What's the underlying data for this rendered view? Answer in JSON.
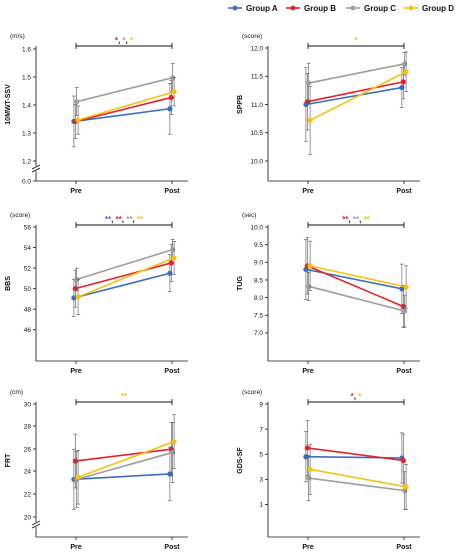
{
  "legend": [
    {
      "name": "Group A",
      "color": "#3a6fbf"
    },
    {
      "name": "Group B",
      "color": "#e8202a"
    },
    {
      "name": "Group C",
      "color": "#9e9e9e"
    },
    {
      "name": "Group D",
      "color": "#f7c20f"
    }
  ],
  "chart_data": [
    {
      "type": "line",
      "ylabel": "10MWT-SSV",
      "unit": "(m/s)",
      "categories": [
        "Pre",
        "Post"
      ],
      "ylim": [
        1.2,
        1.6
      ],
      "yticks": [
        "0.0",
        "1.2",
        "1.3",
        "1.4",
        "1.5",
        "1.6"
      ],
      "series": [
        {
          "name": "Group A",
          "values": [
            1.34,
            1.385
          ],
          "err": [
            0.09,
            0.09
          ]
        },
        {
          "name": "Group B",
          "values": [
            1.34,
            1.425
          ],
          "err": [
            0.06,
            0.06
          ]
        },
        {
          "name": "Group C",
          "values": [
            1.41,
            1.495
          ],
          "err": [
            0.05,
            0.05
          ]
        },
        {
          "name": "Group D",
          "values": [
            1.345,
            1.445
          ],
          "err": [
            0.05,
            0.05
          ]
        }
      ],
      "significance": [
        {
          "text": "*",
          "color": "#e8202a"
        },
        {
          "text": ", ",
          "color": "#111111"
        },
        {
          "text": "*",
          "color": "#9e9e9e"
        },
        {
          "text": ", ",
          "color": "#111111"
        },
        {
          "text": "*",
          "color": "#f7c20f"
        }
      ],
      "axis_break": true
    },
    {
      "type": "line",
      "ylabel": "SPPB",
      "unit": "(score)",
      "categories": [
        "Pre",
        "Post"
      ],
      "ylim": [
        10.0,
        12.0
      ],
      "yticks": [
        "10.0",
        "10.5",
        "11.0",
        "11.5",
        "12.0"
      ],
      "series": [
        {
          "name": "Group A",
          "values": [
            11.0,
            11.3
          ],
          "err": [
            0.65,
            0.35
          ]
        },
        {
          "name": "Group B",
          "values": [
            11.05,
            11.4
          ],
          "err": [
            0.5,
            0.3
          ]
        },
        {
          "name": "Group C",
          "values": [
            11.38,
            11.72
          ],
          "err": [
            0.35,
            0.2
          ]
        },
        {
          "name": "Group D",
          "values": [
            10.72,
            11.58
          ],
          "err": [
            0.6,
            0.35
          ]
        }
      ],
      "significance": [
        {
          "text": "*",
          "color": "#f7c20f"
        }
      ],
      "axis_break": false
    },
    {
      "type": "line",
      "ylabel": "BBS",
      "unit": "(score)",
      "categories": [
        "Pre",
        "Post"
      ],
      "ylim": [
        45,
        56
      ],
      "yticks": [
        "46",
        "48",
        "50",
        "52",
        "54",
        "56"
      ],
      "series": [
        {
          "name": "Group A",
          "values": [
            49.1,
            51.5
          ],
          "err": [
            1.8,
            1.8
          ]
        },
        {
          "name": "Group B",
          "values": [
            50.0,
            52.5
          ],
          "err": [
            1.8,
            1.8
          ]
        },
        {
          "name": "Group C",
          "values": [
            50.9,
            53.8
          ],
          "err": [
            1.1,
            1.0
          ]
        },
        {
          "name": "Group D",
          "values": [
            49.2,
            53.0
          ],
          "err": [
            1.7,
            1.6
          ]
        }
      ],
      "significance": [
        {
          "text": "**",
          "color": "#3a6fbf"
        },
        {
          "text": ", ",
          "color": "#111111"
        },
        {
          "text": "**",
          "color": "#e8202a"
        },
        {
          "text": ", ",
          "color": "#111111"
        },
        {
          "text": "**",
          "color": "#9e9e9e"
        },
        {
          "text": ", ",
          "color": "#111111"
        },
        {
          "text": "**",
          "color": "#f7c20f"
        }
      ],
      "axis_break": false
    },
    {
      "type": "line",
      "ylabel": "TUG",
      "unit": "(sec)",
      "categories": [
        "Pre",
        "Post"
      ],
      "ylim": [
        6.8,
        10.0
      ],
      "yticks": [
        "7.0",
        "7.5",
        "8.0",
        "8.5",
        "9.0",
        "9.5",
        "10.0"
      ],
      "series": [
        {
          "name": "Group A",
          "values": [
            8.8,
            8.25
          ],
          "err": [
            0.85,
            0.7
          ]
        },
        {
          "name": "Group B",
          "values": [
            8.9,
            7.75
          ],
          "err": [
            0.8,
            0.6
          ]
        },
        {
          "name": "Group C",
          "values": [
            8.32,
            7.62
          ],
          "err": [
            0.4,
            0.45
          ]
        },
        {
          "name": "Group D",
          "values": [
            8.9,
            8.3
          ],
          "err": [
            0.7,
            0.6
          ]
        }
      ],
      "significance": [
        {
          "text": "**",
          "color": "#e8202a"
        },
        {
          "text": ", ",
          "color": "#111111"
        },
        {
          "text": "**",
          "color": "#9e9e9e"
        },
        {
          "text": ", ",
          "color": "#111111"
        },
        {
          "text": "**",
          "color": "#f7c20f"
        }
      ],
      "axis_break": false
    },
    {
      "type": "line",
      "ylabel": "FRT",
      "unit": "(cm)",
      "categories": [
        "Pre",
        "Post"
      ],
      "ylim": [
        19.5,
        30.0
      ],
      "yticks": [
        "20",
        "22",
        "24",
        "26",
        "28",
        "30"
      ],
      "series": [
        {
          "name": "Group A",
          "values": [
            23.0,
            23.5
          ],
          "err": [
            2.8,
            2.5
          ]
        },
        {
          "name": "Group B",
          "values": [
            24.7,
            25.8
          ],
          "err": [
            2.5,
            2.5
          ]
        },
        {
          "name": "Group C",
          "values": [
            23.0,
            25.5
          ],
          "err": [
            2.6,
            2.8
          ]
        },
        {
          "name": "Group D",
          "values": [
            23.2,
            26.5
          ],
          "err": [
            2.5,
            2.5
          ]
        }
      ],
      "significance": [
        {
          "text": "**",
          "color": "#f7c20f"
        }
      ],
      "axis_break": true
    },
    {
      "type": "line",
      "ylabel": "GDS-SF",
      "unit": "(score)",
      "categories": [
        "Pre",
        "Post"
      ],
      "ylim": [
        0,
        9
      ],
      "yticks": [
        "1",
        "3",
        "5",
        "7",
        "9"
      ],
      "series": [
        {
          "name": "Group A",
          "values": [
            4.8,
            4.7
          ],
          "err": [
            2.0,
            2.0
          ]
        },
        {
          "name": "Group B",
          "values": [
            5.5,
            4.5
          ],
          "err": [
            2.2,
            2.1
          ]
        },
        {
          "name": "Group C",
          "values": [
            3.1,
            2.1
          ],
          "err": [
            1.8,
            1.5
          ]
        },
        {
          "name": "Group D",
          "values": [
            3.8,
            2.4
          ],
          "err": [
            2.0,
            1.8
          ]
        }
      ],
      "significance": [
        {
          "text": "*",
          "color": "#e8202a"
        },
        {
          "text": ", ",
          "color": "#111111"
        },
        {
          "text": "*",
          "color": "#f7c20f"
        }
      ],
      "axis_break": false
    }
  ]
}
